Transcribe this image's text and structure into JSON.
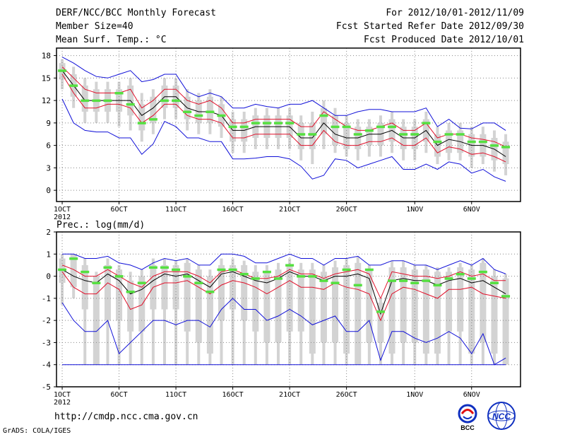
{
  "header": {
    "title": "DERF/NCC/BCC Monthly Forecast",
    "member_size": "Member Size=40",
    "variable": "Mean Surf. Temp.: °C",
    "period": "For 2012/10/01-2012/11/09",
    "fcst_started": "Fcst Started Refer Date 2012/09/30",
    "fcst_produced": "Fcst Produced Date 2012/10/01"
  },
  "footer": {
    "url": "http://cmdp.ncc.cma.gov.cn",
    "grads": "GrADS: COLA/IGES",
    "logo_bcc": "BCC",
    "logo_ncc": "NCC"
  },
  "colors": {
    "box": "#d3d3d3",
    "median": "#000000",
    "inner": "#e0102a",
    "outer": "#1010d8",
    "obs": "#55e040"
  },
  "chart_data": [
    {
      "type": "box-line",
      "panel": "temperature",
      "title": "Mean Surf. Temp.: °C",
      "x_tick_labels": [
        "1OCT\n2012",
        "6OCT",
        "11OCT",
        "16OCT",
        "21OCT",
        "26OCT",
        "1NOV",
        "6NOV"
      ],
      "x_tick_days": [
        1,
        6,
        11,
        16,
        21,
        26,
        32,
        37
      ],
      "ylim": [
        -1.5,
        19
      ],
      "y_ticks": [
        0,
        3,
        6,
        9,
        12,
        15,
        18
      ],
      "days": [
        1,
        2,
        3,
        4,
        5,
        6,
        7,
        8,
        9,
        10,
        11,
        12,
        13,
        14,
        15,
        16,
        17,
        18,
        19,
        20,
        21,
        22,
        23,
        24,
        25,
        26,
        27,
        28,
        29,
        30,
        31,
        32,
        33,
        34,
        35,
        36,
        37,
        38,
        39,
        40
      ],
      "series": [
        {
          "name": "upper",
          "values": [
            17.8,
            17.0,
            16.0,
            15.2,
            15.0,
            15.5,
            16.0,
            14.5,
            14.8,
            15.5,
            15.5,
            13.2,
            12.5,
            13.0,
            12.5,
            11.0,
            11.0,
            11.5,
            11.2,
            11.0,
            11.5,
            11.5,
            12.0,
            11.0,
            10.0,
            10.0,
            10.5,
            10.8,
            10.8,
            10.5,
            10.5,
            10.5,
            11.0,
            8.5,
            9.5,
            8.3,
            8.2,
            9.0,
            9.0,
            8.0
          ]
        },
        {
          "name": "inner_upper",
          "values": [
            16.5,
            15.0,
            13.5,
            13.0,
            13.0,
            13.0,
            13.5,
            11.0,
            12.0,
            13.5,
            13.5,
            12.0,
            11.5,
            12.0,
            11.0,
            9.0,
            9.0,
            9.5,
            9.5,
            9.5,
            9.5,
            8.5,
            8.5,
            10.5,
            9.5,
            8.5,
            8.0,
            8.0,
            8.5,
            9.0,
            8.0,
            8.0,
            9.0,
            7.0,
            7.5,
            7.5,
            7.0,
            6.8,
            6.5,
            5.8
          ]
        },
        {
          "name": "median",
          "values": [
            16.0,
            14.0,
            12.0,
            12.0,
            12.0,
            12.0,
            12.0,
            10.0,
            11.0,
            12.5,
            12.5,
            11.0,
            10.5,
            10.5,
            10.0,
            8.0,
            8.0,
            8.5,
            8.5,
            8.5,
            8.5,
            7.0,
            7.0,
            9.0,
            7.5,
            7.0,
            7.0,
            7.5,
            7.5,
            8.0,
            7.0,
            7.0,
            8.0,
            6.0,
            6.8,
            6.5,
            6.0,
            6.0,
            5.5,
            4.5
          ]
        },
        {
          "name": "inner_lower",
          "values": [
            15.5,
            13.0,
            11.0,
            11.0,
            11.5,
            11.5,
            11.0,
            9.0,
            10.0,
            11.5,
            11.5,
            10.0,
            9.5,
            9.5,
            9.0,
            7.0,
            7.0,
            7.5,
            7.5,
            7.5,
            7.5,
            6.0,
            6.0,
            8.0,
            6.5,
            6.0,
            6.0,
            6.5,
            6.5,
            7.0,
            6.0,
            6.0,
            7.0,
            5.0,
            5.8,
            5.5,
            4.8,
            5.0,
            4.5,
            3.8
          ]
        },
        {
          "name": "lower",
          "values": [
            12.2,
            9.0,
            8.0,
            7.8,
            7.8,
            7.0,
            7.0,
            4.8,
            6.2,
            9.2,
            8.5,
            7.0,
            7.0,
            6.5,
            6.5,
            4.2,
            4.2,
            4.3,
            4.5,
            4.5,
            4.2,
            3.2,
            1.5,
            2.0,
            4.2,
            4.0,
            3.0,
            3.5,
            4.0,
            4.5,
            2.8,
            2.8,
            3.5,
            2.8,
            3.8,
            3.5,
            2.3,
            2.8,
            1.8,
            1.2
          ]
        }
      ],
      "box_low": [
        14.8,
        12.5,
        10.5,
        10.5,
        10.5,
        10.5,
        10.0,
        8.0,
        9.0,
        11.0,
        11.0,
        9.5,
        9.0,
        9.0,
        8.5,
        6.5,
        6.5,
        7.0,
        7.0,
        7.0,
        7.0,
        5.5,
        5.5,
        7.5,
        6.0,
        5.5,
        5.5,
        6.0,
        6.0,
        6.5,
        5.5,
        5.5,
        6.5,
        4.5,
        5.0,
        5.0,
        4.5,
        4.5,
        4.0,
        3.5
      ],
      "box_high": [
        17.0,
        15.5,
        14.0,
        13.5,
        13.5,
        13.5,
        14.0,
        11.5,
        12.5,
        14.0,
        14.0,
        12.5,
        12.0,
        12.5,
        11.5,
        9.5,
        9.5,
        10.0,
        10.0,
        10.0,
        10.0,
        9.0,
        9.0,
        11.0,
        10.0,
        9.0,
        8.5,
        8.5,
        9.0,
        9.5,
        8.5,
        8.5,
        9.5,
        7.5,
        8.0,
        8.0,
        7.5,
        7.5,
        7.0,
        6.5
      ],
      "whisker_low": [
        13.5,
        11.0,
        9.0,
        9.0,
        9.0,
        8.5,
        8.0,
        6.5,
        7.5,
        9.5,
        9.5,
        8.0,
        7.5,
        7.5,
        7.0,
        5.0,
        5.0,
        5.5,
        5.5,
        5.5,
        5.5,
        4.0,
        3.5,
        5.5,
        5.0,
        4.5,
        4.0,
        4.5,
        4.5,
        5.0,
        4.0,
        4.0,
        5.0,
        3.5,
        4.0,
        4.0,
        3.0,
        3.5,
        2.5,
        2.0
      ],
      "whisker_high": [
        17.5,
        16.5,
        15.0,
        14.5,
        14.5,
        14.5,
        15.0,
        13.0,
        13.5,
        15.0,
        15.0,
        13.5,
        13.0,
        13.5,
        12.5,
        10.5,
        10.5,
        11.0,
        11.0,
        11.0,
        11.0,
        10.0,
        10.5,
        12.0,
        11.0,
        10.0,
        9.5,
        9.5,
        10.0,
        10.5,
        9.5,
        9.5,
        10.5,
        8.5,
        9.0,
        9.0,
        8.5,
        8.5,
        8.0,
        7.5
      ],
      "observed": [
        16.0,
        14.0,
        12.0,
        12.0,
        12.0,
        13.0,
        11.5,
        9.0,
        9.5,
        12.0,
        12.0,
        10.5,
        10.0,
        10.5,
        10.0,
        8.5,
        8.5,
        9.0,
        9.0,
        9.0,
        9.0,
        7.5,
        7.5,
        10.0,
        8.5,
        8.5,
        7.5,
        8.0,
        8.5,
        8.5,
        7.5,
        7.5,
        9.0,
        6.5,
        7.5,
        7.5,
        6.5,
        6.5,
        6.0,
        5.8
      ]
    },
    {
      "type": "box-line",
      "panel": "precipitation",
      "title": "Prec.: log(mm/d)",
      "x_tick_labels": [
        "1OCT\n2012",
        "6OCT",
        "11OCT",
        "16OCT",
        "21OCT",
        "26OCT",
        "1NOV",
        "6NOV"
      ],
      "x_tick_days": [
        1,
        6,
        11,
        16,
        21,
        26,
        32,
        37
      ],
      "ylim": [
        -5,
        2
      ],
      "y_ticks": [
        -5,
        -4,
        -3,
        -2,
        -1,
        0,
        1,
        2
      ],
      "days": [
        1,
        2,
        3,
        4,
        5,
        6,
        7,
        8,
        9,
        10,
        11,
        12,
        13,
        14,
        15,
        16,
        17,
        18,
        19,
        20,
        21,
        22,
        23,
        24,
        25,
        26,
        27,
        28,
        29,
        30,
        31,
        32,
        33,
        34,
        35,
        36,
        37,
        38,
        39,
        40
      ],
      "series": [
        {
          "name": "upper",
          "values": [
            1.0,
            1.0,
            0.8,
            0.8,
            0.9,
            0.6,
            0.5,
            0.3,
            0.6,
            0.8,
            0.7,
            0.8,
            0.5,
            0.5,
            1.0,
            1.0,
            0.9,
            0.6,
            0.6,
            0.8,
            1.0,
            0.8,
            0.8,
            0.5,
            0.8,
            0.8,
            0.9,
            0.5,
            0.5,
            0.7,
            0.7,
            0.5,
            0.5,
            0.3,
            0.5,
            0.7,
            0.5,
            0.8,
            0.3,
            0.1
          ]
        },
        {
          "name": "inner_upper",
          "values": [
            0.5,
            0.3,
            0.0,
            0.0,
            0.3,
            0.0,
            -0.3,
            -0.5,
            0.0,
            0.2,
            0.2,
            0.2,
            0.0,
            -0.3,
            0.2,
            0.3,
            0.1,
            -0.1,
            -0.1,
            0.0,
            0.3,
            0.1,
            0.1,
            -0.1,
            0.1,
            0.2,
            0.3,
            0.1,
            -1.0,
            0.2,
            0.1,
            0.0,
            0.0,
            -0.1,
            0.0,
            0.2,
            0.0,
            0.1,
            -0.2,
            -0.2
          ]
        },
        {
          "name": "median",
          "values": [
            0.3,
            0.0,
            -0.2,
            -0.3,
            0.1,
            -0.2,
            -0.8,
            -0.6,
            -0.2,
            0.1,
            0.0,
            0.1,
            -0.2,
            -0.5,
            0.1,
            0.2,
            0.0,
            -0.2,
            -0.3,
            -0.1,
            0.2,
            0.0,
            0.0,
            -0.2,
            0.0,
            0.0,
            0.1,
            -0.1,
            -1.7,
            -0.2,
            -0.1,
            -0.2,
            -0.2,
            -0.4,
            -0.2,
            -0.1,
            -0.3,
            -0.2,
            -0.5,
            -0.8
          ]
        },
        {
          "name": "inner_lower",
          "values": [
            0.2,
            -0.5,
            -0.8,
            -0.8,
            -0.3,
            -0.6,
            -1.5,
            -1.3,
            -0.5,
            -0.3,
            -0.3,
            -0.2,
            -0.5,
            -0.8,
            -0.4,
            -0.2,
            -0.3,
            -0.5,
            -0.8,
            -0.5,
            -0.2,
            -0.5,
            -0.5,
            -0.6,
            -0.3,
            -0.5,
            -0.6,
            -0.8,
            -2.0,
            -0.8,
            -0.5,
            -0.6,
            -0.8,
            -1.0,
            -0.6,
            -0.6,
            -0.5,
            -0.8,
            -0.9,
            -1.0
          ]
        },
        {
          "name": "lower",
          "values": [
            -1.2,
            -2.0,
            -2.5,
            -2.5,
            -2.0,
            -3.5,
            -3.0,
            -2.5,
            -2.0,
            -2.0,
            -2.2,
            -2.0,
            -2.0,
            -2.3,
            -1.5,
            -1.0,
            -1.5,
            -1.5,
            -2.0,
            -1.8,
            -1.5,
            -1.8,
            -2.2,
            -2.0,
            -1.8,
            -2.5,
            -2.5,
            -2.0,
            -3.8,
            -2.5,
            -2.5,
            -2.8,
            -3.0,
            -2.8,
            -2.5,
            -2.8,
            -3.5,
            -2.6,
            -4.0,
            -3.7
          ]
        },
        {
          "name": "floor",
          "values": [
            -4.0,
            -4.0,
            -4.0,
            -4.0,
            -4.0,
            -4.0,
            -4.0,
            -4.0,
            -4.0,
            -4.0,
            -4.0,
            -4.0,
            -4.0,
            -4.0,
            -4.0,
            -4.0,
            -4.0,
            -4.0,
            -4.0,
            -4.0,
            -4.0,
            -4.0,
            -4.0,
            -4.0,
            -4.0,
            -4.0,
            -4.0,
            -4.0,
            -4.0,
            -4.0,
            -4.0,
            -4.0,
            -4.0,
            -4.0,
            -4.0,
            -4.0,
            -4.0,
            -4.0,
            -4.0,
            -4.0
          ]
        }
      ],
      "box_low": [
        -0.3,
        -0.5,
        -1.5,
        -4.0,
        -2.0,
        -2.0,
        -2.5,
        -2.5,
        -1.5,
        -1.5,
        -1.5,
        -2.5,
        -3.0,
        -3.5,
        -2.0,
        -1.5,
        -2.0,
        -2.5,
        -3.0,
        -3.0,
        -2.5,
        -2.5,
        -3.5,
        -3.0,
        -3.0,
        -3.5,
        -4.0,
        -3.0,
        -3.0,
        -3.5,
        -3.0,
        -3.0,
        -3.5,
        -3.5,
        -2.5,
        -2.5,
        -3.5,
        -3.0,
        -3.5,
        -4.0
      ],
      "box_high": [
        0.8,
        1.0,
        0.5,
        0.0,
        0.5,
        0.3,
        -0.2,
        0.0,
        0.5,
        0.5,
        0.5,
        0.6,
        0.3,
        0.0,
        0.5,
        0.5,
        0.5,
        0.2,
        0.2,
        0.3,
        0.5,
        0.3,
        0.3,
        0.2,
        0.4,
        0.5,
        0.6,
        0.3,
        -1.2,
        0.4,
        0.4,
        0.3,
        0.3,
        0.2,
        0.2,
        0.4,
        0.3,
        0.6,
        0.0,
        -0.1
      ],
      "whisker_low": [
        -1.3,
        -1.0,
        -4.0,
        -4.0,
        -4.0,
        -4.0,
        -4.0,
        -4.0,
        -4.0,
        -4.0,
        -4.0,
        -4.0,
        -4.0,
        -4.0,
        -4.0,
        -4.0,
        -4.0,
        -4.0,
        -4.0,
        -4.0,
        -4.0,
        -4.0,
        -4.0,
        -4.0,
        -4.0,
        -4.0,
        -4.0,
        -4.0,
        -4.0,
        -4.0,
        -4.0,
        -4.0,
        -4.0,
        -4.0,
        -4.0,
        -4.0,
        -4.0,
        -4.0,
        -4.0,
        -4.0
      ],
      "whisker_high": [
        1.0,
        1.0,
        0.8,
        0.2,
        0.8,
        0.5,
        0.2,
        0.3,
        0.8,
        0.8,
        0.7,
        0.8,
        0.5,
        0.3,
        0.8,
        0.8,
        0.7,
        0.5,
        0.5,
        0.6,
        0.8,
        0.6,
        0.6,
        0.5,
        0.7,
        0.8,
        0.9,
        0.5,
        -1.0,
        0.7,
        0.7,
        0.5,
        0.5,
        0.4,
        0.4,
        0.6,
        0.5,
        0.8,
        0.3,
        0.1
      ],
      "observed": [
        0.3,
        0.8,
        0.2,
        -0.3,
        0.4,
        0.0,
        -0.7,
        -0.3,
        0.4,
        0.4,
        0.3,
        0.0,
        -0.3,
        -0.7,
        0.3,
        0.3,
        0.1,
        -0.1,
        0.2,
        -0.1,
        0.5,
        0.0,
        0.0,
        -0.2,
        -0.3,
        0.3,
        -0.4,
        0.3,
        -1.6,
        -0.2,
        -0.2,
        -0.3,
        -0.2,
        -0.4,
        -0.1,
        0.1,
        -0.1,
        0.2,
        -0.3,
        -0.9
      ]
    }
  ]
}
